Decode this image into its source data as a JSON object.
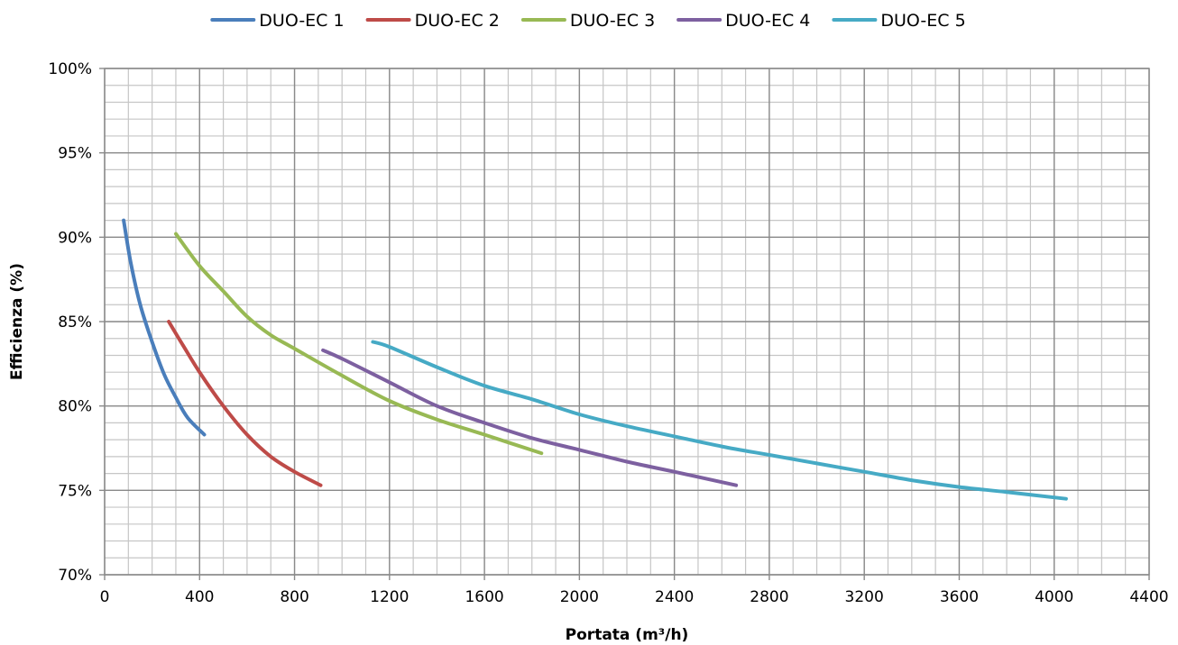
{
  "chart_data": {
    "type": "line",
    "title": "",
    "xlabel": "Portata (m³/h)",
    "ylabel": "Efficienza (%)",
    "xlim": [
      0,
      4400
    ],
    "ylim": [
      70,
      100
    ],
    "x_ticks": [
      "0",
      "400",
      "800",
      "1200",
      "1600",
      "2000",
      "2400",
      "2800",
      "3200",
      "3600",
      "4000",
      "4400"
    ],
    "x_tick_values": [
      0,
      400,
      800,
      1200,
      1600,
      2000,
      2400,
      2800,
      3200,
      3600,
      4000,
      4400
    ],
    "y_ticks": [
      "70%",
      "75%",
      "80%",
      "85%",
      "90%",
      "95%",
      "100%"
    ],
    "y_tick_values": [
      70,
      75,
      80,
      85,
      90,
      95,
      100
    ],
    "grid": true,
    "minor_grid": true,
    "legend_position": "top",
    "series": [
      {
        "name": "DUO-EC 1",
        "color": "#4a7ebb",
        "points": [
          [
            80,
            91.0
          ],
          [
            110,
            88.5
          ],
          [
            150,
            86.0
          ],
          [
            200,
            83.8
          ],
          [
            250,
            81.9
          ],
          [
            300,
            80.5
          ],
          [
            350,
            79.3
          ],
          [
            420,
            78.3
          ]
        ]
      },
      {
        "name": "DUO-EC 2",
        "color": "#be4b48",
        "points": [
          [
            270,
            85.0
          ],
          [
            330,
            83.6
          ],
          [
            400,
            82.0
          ],
          [
            500,
            80.0
          ],
          [
            600,
            78.3
          ],
          [
            700,
            77.0
          ],
          [
            800,
            76.1
          ],
          [
            910,
            75.3
          ]
        ]
      },
      {
        "name": "DUO-EC 3",
        "color": "#98b954",
        "points": [
          [
            300,
            90.2
          ],
          [
            400,
            88.3
          ],
          [
            500,
            86.8
          ],
          [
            600,
            85.3
          ],
          [
            700,
            84.2
          ],
          [
            800,
            83.4
          ],
          [
            1000,
            81.8
          ],
          [
            1200,
            80.3
          ],
          [
            1400,
            79.2
          ],
          [
            1600,
            78.3
          ],
          [
            1840,
            77.2
          ]
        ]
      },
      {
        "name": "DUO-EC 4",
        "color": "#7d60a0",
        "points": [
          [
            920,
            83.3
          ],
          [
            1000,
            82.8
          ],
          [
            1200,
            81.4
          ],
          [
            1400,
            80.0
          ],
          [
            1600,
            79.0
          ],
          [
            1800,
            78.1
          ],
          [
            2000,
            77.4
          ],
          [
            2200,
            76.7
          ],
          [
            2400,
            76.1
          ],
          [
            2660,
            75.3
          ]
        ]
      },
      {
        "name": "DUO-EC 5",
        "color": "#46aac5",
        "points": [
          [
            1130,
            83.8
          ],
          [
            1200,
            83.5
          ],
          [
            1400,
            82.3
          ],
          [
            1600,
            81.2
          ],
          [
            1800,
            80.4
          ],
          [
            2000,
            79.5
          ],
          [
            2200,
            78.8
          ],
          [
            2400,
            78.2
          ],
          [
            2600,
            77.6
          ],
          [
            2800,
            77.1
          ],
          [
            3000,
            76.6
          ],
          [
            3200,
            76.1
          ],
          [
            3400,
            75.6
          ],
          [
            3600,
            75.2
          ],
          [
            3800,
            74.9
          ],
          [
            4050,
            74.5
          ]
        ]
      }
    ]
  }
}
